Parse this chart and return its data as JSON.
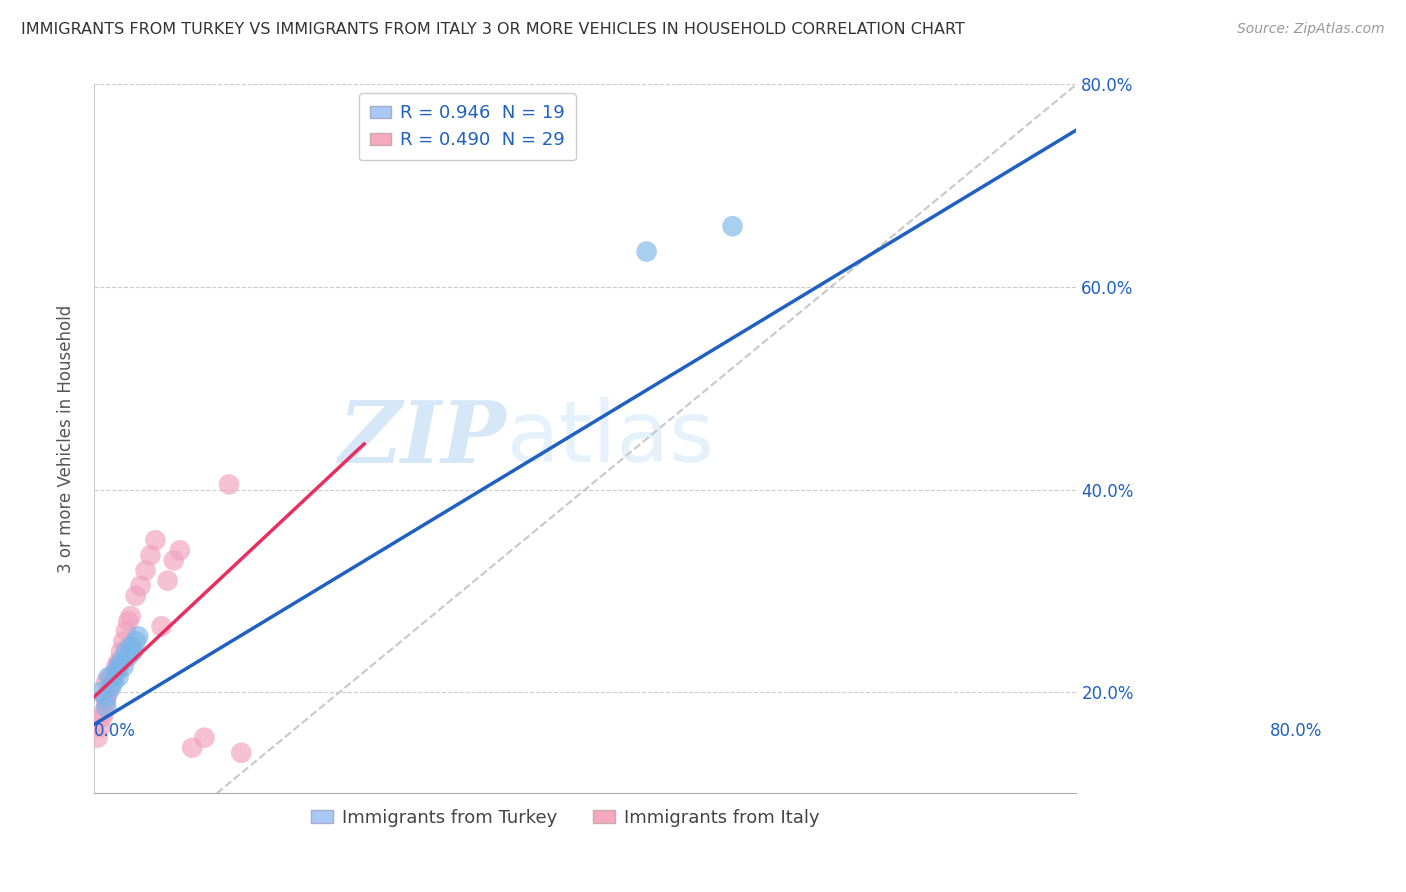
{
  "title": "IMMIGRANTS FROM TURKEY VS IMMIGRANTS FROM ITALY 3 OR MORE VEHICLES IN HOUSEHOLD CORRELATION CHART",
  "source": "Source: ZipAtlas.com",
  "ylabel": "3 or more Vehicles in Household",
  "xlim": [
    0,
    0.8
  ],
  "ylim": [
    0.1,
    0.8
  ],
  "yticks_right": [
    0.2,
    0.4,
    0.6,
    0.8
  ],
  "ytick_labels_right": [
    "20.0%",
    "40.0%",
    "60.0%",
    "80.0%"
  ],
  "watermark_zip": "ZIP",
  "watermark_atlas": "atlas",
  "legend_top": [
    {
      "label": "R = 0.946  N = 19",
      "color": "#a8c8f5"
    },
    {
      "label": "R = 0.490  N = 29",
      "color": "#f5a8c0"
    }
  ],
  "legend_bottom": [
    {
      "label": "Immigrants from Turkey",
      "color": "#a8c8f5"
    },
    {
      "label": "Immigrants from Italy",
      "color": "#f5a8c0"
    }
  ],
  "turkey_color": "#7ab4e8",
  "italy_color": "#f0a0bc",
  "turkey_line_color": "#2060c0",
  "italy_line_color": "#e83060",
  "ref_line_color": "#c8c8c8",
  "background_color": "#ffffff",
  "turkey_scatter_x": [
    0.005,
    0.01,
    0.01,
    0.012,
    0.014,
    0.016,
    0.018,
    0.02,
    0.02,
    0.022,
    0.024,
    0.026,
    0.028,
    0.03,
    0.032,
    0.034,
    0.036,
    0.45,
    0.52
  ],
  "turkey_scatter_y": [
    0.2,
    0.195,
    0.185,
    0.215,
    0.205,
    0.21,
    0.22,
    0.225,
    0.215,
    0.23,
    0.225,
    0.24,
    0.235,
    0.245,
    0.24,
    0.25,
    0.255,
    0.635,
    0.66
  ],
  "italy_scatter_x": [
    0.003,
    0.005,
    0.007,
    0.008,
    0.01,
    0.01,
    0.012,
    0.014,
    0.016,
    0.018,
    0.02,
    0.022,
    0.024,
    0.026,
    0.028,
    0.03,
    0.034,
    0.038,
    0.042,
    0.046,
    0.05,
    0.055,
    0.06,
    0.065,
    0.07,
    0.08,
    0.09,
    0.11,
    0.12
  ],
  "italy_scatter_y": [
    0.155,
    0.165,
    0.175,
    0.18,
    0.19,
    0.21,
    0.2,
    0.215,
    0.215,
    0.225,
    0.23,
    0.24,
    0.25,
    0.26,
    0.27,
    0.275,
    0.295,
    0.305,
    0.32,
    0.335,
    0.35,
    0.265,
    0.31,
    0.33,
    0.34,
    0.145,
    0.155,
    0.405,
    0.14
  ],
  "turkey_trend_x": [
    0.0,
    0.8
  ],
  "turkey_trend_y": [
    0.168,
    0.755
  ],
  "italy_trend_x": [
    0.0,
    0.22
  ],
  "italy_trend_y": [
    0.195,
    0.445
  ],
  "ref_line_x": [
    0.1,
    0.8
  ],
  "ref_line_y": [
    0.1,
    0.8
  ]
}
